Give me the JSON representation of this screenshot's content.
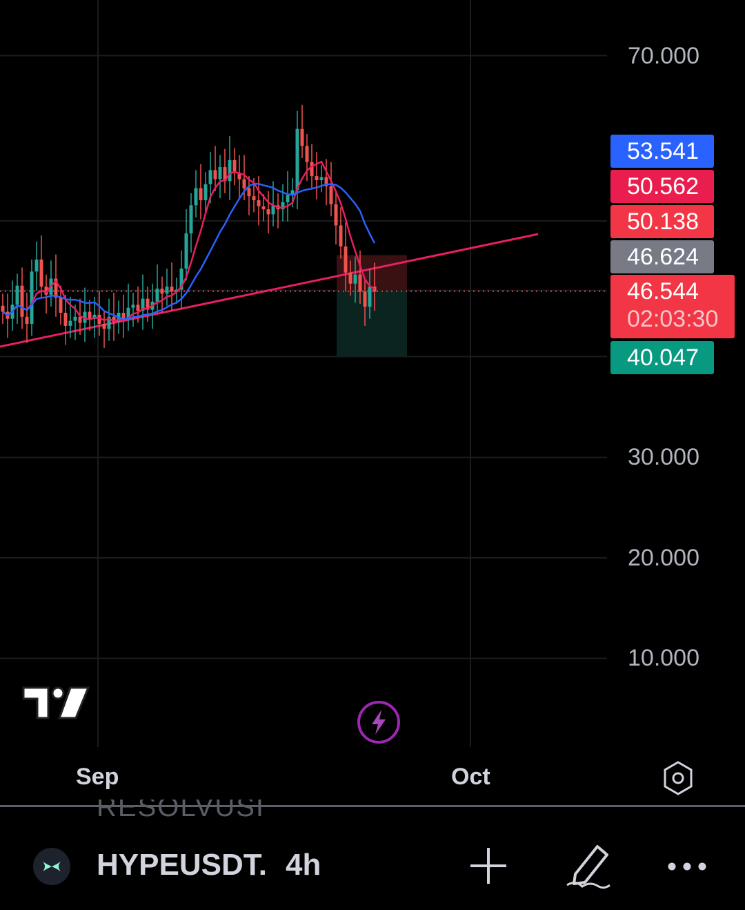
{
  "chart_data": {
    "type": "candlestick",
    "symbol": "HYPEUSDT.",
    "interval": "4h",
    "y_axis_ticks": [
      "70.000",
      "30.000",
      "20.000",
      "10.000"
    ],
    "x_axis_ticks": [
      "Sep",
      "Oct"
    ],
    "ylim": [
      0,
      75
    ],
    "price_labels": [
      {
        "value": "53.541",
        "color": "#2962ff"
      },
      {
        "value": "50.562",
        "color": "#e91e4f"
      },
      {
        "value": "50.138",
        "color": "#f23645"
      },
      {
        "value": "46.624",
        "color": "#787b86"
      },
      {
        "value": "40.047",
        "color": "#089981"
      }
    ],
    "current_price": {
      "value": "46.544",
      "countdown": "02:03:30",
      "color": "#f23645"
    },
    "moving_averages": [
      {
        "color": "#e91e63"
      },
      {
        "color": "#2962ff"
      }
    ],
    "trendline": {
      "from": {
        "x": "Aug 24",
        "y": 39.6
      },
      "to": {
        "x": "Oct 7",
        "y": 51.8
      },
      "color": "#e91e63"
    },
    "position": {
      "entry": 46.624,
      "stop": 50.138,
      "target": 40.047
    },
    "close_series": [
      44.5,
      43.8,
      45.2,
      47.1,
      44.0,
      43.3,
      48.5,
      49.7,
      47.0,
      46.2,
      47.8,
      45.9,
      44.4,
      43.1,
      43.6,
      44.0,
      43.4,
      44.5,
      43.8,
      44.2,
      43.3,
      42.8,
      44.0,
      43.5,
      44.4,
      43.8,
      44.9,
      45.2,
      44.6,
      45.8,
      44.7,
      45.5,
      46.8,
      46.3,
      47.0,
      46.5,
      46.7,
      48.8,
      52.3,
      55.1,
      56.8,
      55.6,
      57.2,
      58.6,
      57.7,
      58.9,
      57.5,
      59.6,
      58.3,
      57.7,
      56.8,
      56.0,
      55.6,
      55.0,
      54.7,
      54.2,
      55.1,
      54.7,
      55.4,
      56.1,
      56.6,
      62.7,
      61.0,
      59.4,
      58.0,
      57.6,
      57.9,
      57.0,
      55.2,
      53.1,
      51.0,
      48.4,
      47.3,
      48.2,
      46.5,
      45.0,
      47.0,
      46.5
    ]
  },
  "symbol": "HYPEUSDT.",
  "interval": "4h",
  "ghost_text": "RESOLVUSI",
  "icons": {
    "settings": "hexagon-settings-icon",
    "add": "plus-icon",
    "draw": "pencil-icon",
    "more": "more-dots-icon",
    "logo": "tradingview-logo",
    "bolt": "lightning-icon"
  }
}
